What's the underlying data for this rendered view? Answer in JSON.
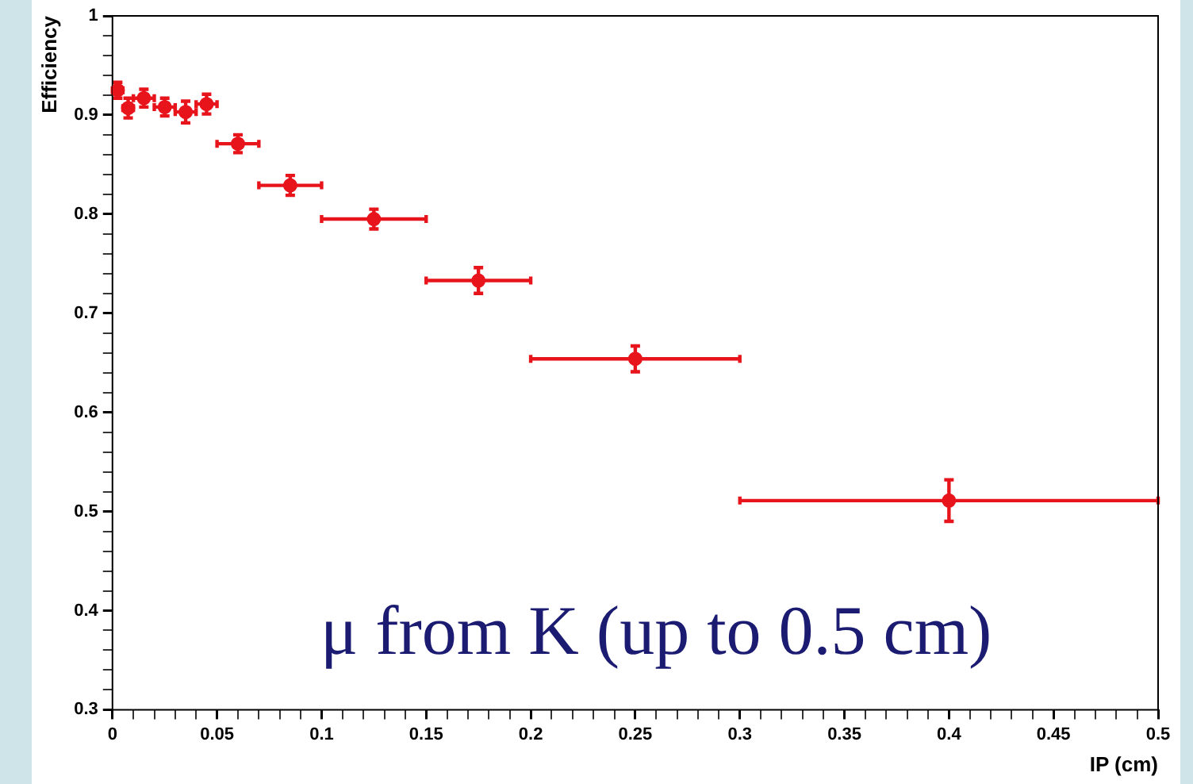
{
  "chart_data": {
    "type": "scatter",
    "xlabel": "IP (cm)",
    "ylabel": "Efficiency",
    "annotations": [
      "μ from K (up to 0.5 cm)"
    ],
    "x": [
      0.0025,
      0.0075,
      0.015,
      0.025,
      0.035,
      0.045,
      0.06,
      0.085,
      0.125,
      0.175,
      0.25,
      0.4
    ],
    "series": [
      {
        "color": "#e8141c",
        "values": [
          0.925,
          0.907,
          0.917,
          0.908,
          0.903,
          0.911,
          0.871,
          0.829,
          0.795,
          0.733,
          0.654,
          0.511
        ],
        "errors": [
          0.008,
          0.01,
          0.009,
          0.009,
          0.011,
          0.01,
          0.009,
          0.01,
          0.01,
          0.013,
          0.013,
          0.021
        ],
        "xerrors": [
          0.0025,
          0.0025,
          0.005,
          0.005,
          0.005,
          0.005,
          0.01,
          0.015,
          0.025,
          0.025,
          0.05,
          0.1
        ]
      }
    ],
    "grid": false,
    "legend": false,
    "xlim": [
      0,
      0.5
    ],
    "ylim": [
      0.3,
      1
    ],
    "xticks": [
      0,
      {
        "value": 0.01,
        "label": null
      },
      {
        "value": 0.02,
        "label": null
      },
      {
        "value": 0.03,
        "label": null
      },
      {
        "value": 0.04,
        "label": null
      },
      0.05,
      {
        "value": 0.06,
        "label": null
      },
      {
        "value": 0.07,
        "label": null
      },
      {
        "value": 0.08,
        "label": null
      },
      {
        "value": 0.09,
        "label": null
      },
      0.1,
      {
        "value": 0.11,
        "label": null
      },
      {
        "value": 0.12,
        "label": null
      },
      {
        "value": 0.13,
        "label": null
      },
      {
        "value": 0.14,
        "label": null
      },
      0.15,
      {
        "value": 0.16,
        "label": null
      },
      {
        "value": 0.17,
        "label": null
      },
      {
        "value": 0.18,
        "label": null
      },
      {
        "value": 0.19,
        "label": null
      },
      0.2,
      {
        "value": 0.21,
        "label": null
      },
      {
        "value": 0.22,
        "label": null
      },
      {
        "value": 0.23,
        "label": null
      },
      {
        "value": 0.24,
        "label": null
      },
      0.25,
      {
        "value": 0.26,
        "label": null
      },
      {
        "value": 0.27,
        "label": null
      },
      {
        "value": 0.28,
        "label": null
      },
      {
        "value": 0.29,
        "label": null
      },
      0.3,
      {
        "value": 0.31,
        "label": null
      },
      {
        "value": 0.32,
        "label": null
      },
      {
        "value": 0.33,
        "label": null
      },
      {
        "value": 0.34,
        "label": null
      },
      0.35,
      {
        "value": 0.36,
        "label": null
      },
      {
        "value": 0.37,
        "label": null
      },
      {
        "value": 0.38,
        "label": null
      },
      {
        "value": 0.39,
        "label": null
      },
      0.4,
      {
        "value": 0.41,
        "label": null
      },
      {
        "value": 0.42,
        "label": null
      },
      {
        "value": 0.43,
        "label": null
      },
      {
        "value": 0.44,
        "label": null
      },
      0.45,
      {
        "value": 0.46,
        "label": null
      },
      {
        "value": 0.47,
        "label": null
      },
      {
        "value": 0.48,
        "label": null
      },
      {
        "value": 0.49,
        "label": null
      },
      0.5
    ],
    "yticks": [
      0.3,
      {
        "value": 0.32,
        "label": null
      },
      {
        "value": 0.34,
        "label": null
      },
      {
        "value": 0.36,
        "label": null
      },
      {
        "value": 0.38,
        "label": null
      },
      0.4,
      {
        "value": 0.42,
        "label": null
      },
      {
        "value": 0.44,
        "label": null
      },
      {
        "value": 0.46,
        "label": null
      },
      {
        "value": 0.48,
        "label": null
      },
      0.5,
      {
        "value": 0.52,
        "label": null
      },
      {
        "value": 0.54,
        "label": null
      },
      {
        "value": 0.56,
        "label": null
      },
      {
        "value": 0.58,
        "label": null
      },
      0.6,
      {
        "value": 0.62,
        "label": null
      },
      {
        "value": 0.64,
        "label": null
      },
      {
        "value": 0.66,
        "label": null
      },
      {
        "value": 0.68,
        "label": null
      },
      0.7,
      {
        "value": 0.72,
        "label": null
      },
      {
        "value": 0.74,
        "label": null
      },
      {
        "value": 0.76,
        "label": null
      },
      {
        "value": 0.78,
        "label": null
      },
      0.8,
      {
        "value": 0.82,
        "label": null
      },
      {
        "value": 0.84,
        "label": null
      },
      {
        "value": 0.86,
        "label": null
      },
      {
        "value": 0.88,
        "label": null
      },
      0.9,
      {
        "value": 0.92,
        "label": null
      },
      {
        "value": 0.94,
        "label": null
      },
      {
        "value": 0.96,
        "label": null
      },
      {
        "value": 0.98,
        "label": null
      },
      1
    ]
  }
}
